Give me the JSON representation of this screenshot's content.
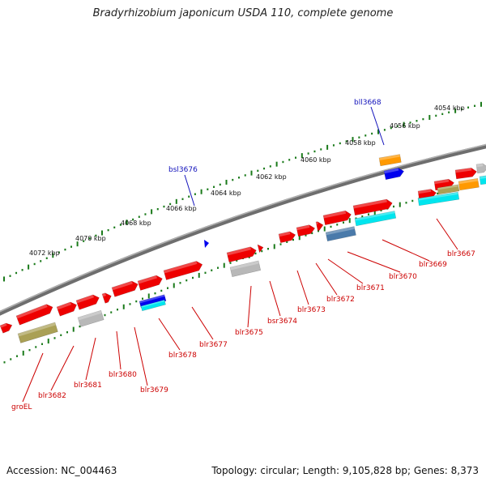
{
  "header": {
    "title": "Bradyrhizobium japonicum USDA 110, complete genome"
  },
  "footer": {
    "accession": "Accession: NC_004463",
    "summary": "Topology: circular; Length: 9,105,828 bp; Genes: 8,373"
  },
  "ruler": {
    "unit": "kbp",
    "ticks": [
      "4054 kbp",
      "4056 kbp",
      "4058 kbp",
      "4060 kbp",
      "4062 kbp",
      "4064 kbp",
      "4066 kbp",
      "4068 kbp",
      "4070 kbp",
      "4072 kbp"
    ]
  },
  "colors": {
    "backbone": "#8a8a8a",
    "gene_forward": "#ee0000",
    "gene_grey": "#b8b8b8",
    "label_red": "#cc0000",
    "label_blue": "#1111bb",
    "tick_green": "#1a7a1a",
    "cyan": "#00e5ee",
    "steel": "#4a7aaa",
    "olive": "#aaa055",
    "orange": "#ff9900",
    "blue": "#0000ee"
  },
  "genes_outer": [
    "bll3668",
    "bsl3676"
  ],
  "genes_inner": [
    "blr3667",
    "blr3669",
    "blr3670",
    "blr3671",
    "blr3672",
    "blr3673",
    "bsr3674",
    "blr3675",
    "blr3677",
    "blr3678",
    "blr3679",
    "blr3680",
    "blr3681",
    "blr3682",
    "groEL"
  ]
}
